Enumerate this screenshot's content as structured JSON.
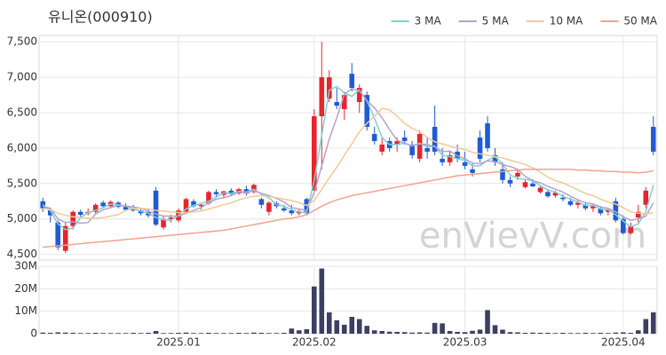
{
  "chart_data": {
    "type": "candlestick",
    "title": "유니온(000910)",
    "watermark": "enVievV.com",
    "categories": [
      null,
      null,
      null,
      null,
      null,
      null,
      null,
      null,
      null,
      null,
      null,
      null,
      null,
      null,
      null,
      null,
      null,
      null,
      "2025.01",
      null,
      null,
      null,
      null,
      null,
      null,
      null,
      null,
      null,
      null,
      null,
      null,
      null,
      null,
      null,
      null,
      null,
      "2025.02",
      null,
      null,
      null,
      null,
      null,
      null,
      null,
      null,
      null,
      null,
      null,
      null,
      null,
      null,
      null,
      null,
      null,
      null,
      null,
      "2025.03",
      null,
      null,
      null,
      null,
      null,
      null,
      null,
      null,
      null,
      null,
      null,
      null,
      null,
      null,
      null,
      null,
      null,
      null,
      null,
      null,
      "2025.04",
      null,
      null,
      null,
      null
    ],
    "open": [
      5250,
      5120,
      4950,
      4550,
      4900,
      5100,
      5080,
      5100,
      5230,
      5180,
      5230,
      5170,
      5150,
      5120,
      5100,
      5400,
      4880,
      5000,
      4980,
      5100,
      5250,
      5180,
      5220,
      5380,
      5340,
      5400,
      5360,
      5420,
      5380,
      5280,
      5100,
      5220,
      5150,
      5120,
      5080,
      5280,
      5400,
      6450,
      6700,
      6650,
      6550,
      7050,
      6650,
      6750,
      6200,
      5950,
      6100,
      6050,
      6150,
      6050,
      5850,
      6000,
      6300,
      5850,
      5800,
      5950,
      5800,
      5700,
      6150,
      6350,
      5900,
      5700,
      5550,
      5600,
      5450,
      5500,
      5380,
      5380,
      5330,
      5300,
      5250,
      5200,
      5200,
      5150,
      5150,
      5100,
      5250,
      5000,
      4800,
      5020,
      5200,
      6300
    ],
    "high": [
      5300,
      5150,
      4980,
      4950,
      5120,
      5130,
      5150,
      5220,
      5260,
      5260,
      5250,
      5220,
      5200,
      5160,
      5150,
      5450,
      5050,
      5060,
      5150,
      5300,
      5280,
      5220,
      5400,
      5420,
      5400,
      5430,
      5440,
      5470,
      5500,
      5300,
      5250,
      5250,
      5200,
      5200,
      5140,
      5300,
      6550,
      7500,
      7100,
      6850,
      6800,
      7200,
      6900,
      6800,
      6300,
      6150,
      6150,
      6150,
      6250,
      6100,
      6250,
      6150,
      6600,
      6000,
      5950,
      6050,
      5950,
      5780,
      6250,
      6450,
      6000,
      5800,
      5600,
      5700,
      5550,
      5560,
      5460,
      5420,
      5400,
      5350,
      5300,
      5280,
      5230,
      5200,
      5180,
      5150,
      5300,
      5050,
      4950,
      5200,
      5450,
      6450
    ],
    "low": [
      5100,
      4950,
      4560,
      4520,
      4850,
      5020,
      5050,
      5080,
      5150,
      5150,
      5150,
      5120,
      5100,
      5050,
      5020,
      4900,
      4850,
      4950,
      4950,
      5080,
      5160,
      5130,
      5200,
      5300,
      5300,
      5330,
      5340,
      5330,
      5360,
      5150,
      5050,
      5150,
      5100,
      5050,
      5050,
      5050,
      5400,
      5700,
      6650,
      6550,
      6400,
      6800,
      6500,
      6250,
      6050,
      5900,
      5950,
      5950,
      6050,
      5850,
      5800,
      5850,
      5900,
      5750,
      5750,
      5800,
      5700,
      5600,
      5800,
      5950,
      5750,
      5500,
      5450,
      5550,
      5430,
      5450,
      5360,
      5300,
      5300,
      5250,
      5180,
      5150,
      5120,
      5100,
      5050,
      5050,
      4950,
      4780,
      4780,
      4950,
      5150,
      5900
    ],
    "close": [
      5150,
      5050,
      4600,
      4900,
      5100,
      5060,
      5100,
      5200,
      5180,
      5240,
      5170,
      5130,
      5120,
      5080,
      5050,
      4920,
      5000,
      5020,
      5120,
      5280,
      5180,
      5200,
      5380,
      5350,
      5390,
      5350,
      5420,
      5360,
      5480,
      5200,
      5230,
      5180,
      5120,
      5080,
      5100,
      5080,
      6450,
      7000,
      7000,
      6600,
      6750,
      6850,
      6850,
      6300,
      6100,
      6050,
      6000,
      6100,
      6100,
      5900,
      6200,
      5950,
      5950,
      5800,
      5900,
      5850,
      5750,
      5650,
      5850,
      6000,
      5800,
      5550,
      5500,
      5650,
      5520,
      5460,
      5440,
      5320,
      5370,
      5280,
      5200,
      5230,
      5150,
      5180,
      5080,
      5130,
      4980,
      4800,
      4900,
      5100,
      5400,
      5950
    ],
    "up_color": "#e8242c",
    "down_color": "#1f5bd6",
    "ylim": [
      4420,
      7590
    ],
    "yticks": [
      {
        "value": 4500,
        "label": "4,500"
      },
      {
        "value": 5000,
        "label": "5,000"
      },
      {
        "value": 5500,
        "label": "5,500"
      },
      {
        "value": 6000,
        "label": "6,000"
      },
      {
        "value": 6500,
        "label": "6,500"
      },
      {
        "value": 7000,
        "label": "7,000"
      },
      {
        "value": 7500,
        "label": "7,500"
      }
    ],
    "grid": true,
    "legend": "top-right",
    "series": [
      {
        "name": "3 MA",
        "color": "#7fd0d4",
        "values": [
          5200,
          5120,
          4930,
          4850,
          4870,
          5020,
          5090,
          5120,
          5160,
          5210,
          5200,
          5180,
          5140,
          5110,
          5080,
          5020,
          4990,
          4980,
          5050,
          5140,
          5190,
          5220,
          5250,
          5310,
          5370,
          5360,
          5390,
          5380,
          5420,
          5350,
          5300,
          5200,
          5180,
          5130,
          5100,
          5090,
          5540,
          6180,
          6820,
          6870,
          6780,
          6730,
          6820,
          6670,
          6420,
          6150,
          6050,
          6050,
          6070,
          6030,
          6070,
          6020,
          6030,
          5900,
          5880,
          5850,
          5830,
          5750,
          5750,
          5830,
          5880,
          5780,
          5620,
          5570,
          5560,
          5540,
          5470,
          5410,
          5380,
          5320,
          5280,
          5240,
          5190,
          5190,
          5140,
          5130,
          5060,
          4970,
          4890,
          4930,
          5100,
          5480
        ]
      },
      {
        "name": "5 MA",
        "color": "#b4a3c9",
        "values": [
          5180,
          5150,
          5000,
          4950,
          4960,
          4940,
          4950,
          5070,
          5130,
          5160,
          5190,
          5180,
          5170,
          5150,
          5110,
          5070,
          5040,
          5040,
          5040,
          5080,
          5120,
          5160,
          5230,
          5280,
          5300,
          5330,
          5380,
          5370,
          5400,
          5360,
          5330,
          5290,
          5240,
          5160,
          5140,
          5120,
          5370,
          5750,
          6130,
          6430,
          6760,
          6840,
          6810,
          6670,
          6570,
          6430,
          6260,
          6110,
          6070,
          6030,
          6060,
          6050,
          6020,
          5950,
          5960,
          5890,
          5850,
          5790,
          5780,
          5820,
          5810,
          5770,
          5740,
          5700,
          5600,
          5540,
          5510,
          5460,
          5420,
          5380,
          5320,
          5270,
          5230,
          5210,
          5170,
          5150,
          5100,
          5030,
          4980,
          5000,
          5040,
          5230
        ]
      },
      {
        "name": "10 MA",
        "color": "#f1c996",
        "values": [
          5150,
          5130,
          5080,
          5050,
          5030,
          5020,
          5010,
          5010,
          5020,
          5040,
          5060,
          5120,
          5150,
          5150,
          5140,
          5120,
          5110,
          5100,
          5090,
          5090,
          5100,
          5110,
          5140,
          5170,
          5200,
          5230,
          5270,
          5300,
          5320,
          5330,
          5320,
          5300,
          5280,
          5260,
          5230,
          5190,
          5260,
          5420,
          5580,
          5730,
          5900,
          6060,
          6230,
          6350,
          6450,
          6560,
          6540,
          6450,
          6350,
          6280,
          6230,
          6150,
          6090,
          6060,
          6030,
          6000,
          5980,
          5940,
          5920,
          5900,
          5880,
          5860,
          5830,
          5800,
          5770,
          5720,
          5660,
          5590,
          5540,
          5510,
          5460,
          5410,
          5360,
          5330,
          5280,
          5240,
          5210,
          5160,
          5100,
          5080,
          5070,
          5090
        ]
      },
      {
        "name": "50 MA",
        "color": "#f2a28c",
        "values": [
          4600,
          4610,
          4620,
          4630,
          4640,
          4650,
          4660,
          4670,
          4680,
          4690,
          4700,
          4710,
          4720,
          4730,
          4740,
          4750,
          4760,
          4770,
          4780,
          4790,
          4800,
          4810,
          4820,
          4830,
          4840,
          4860,
          4880,
          4900,
          4920,
          4940,
          4960,
          4980,
          5000,
          5010,
          5030,
          5060,
          5120,
          5180,
          5230,
          5270,
          5300,
          5330,
          5350,
          5370,
          5390,
          5410,
          5430,
          5450,
          5470,
          5490,
          5510,
          5530,
          5550,
          5570,
          5590,
          5610,
          5620,
          5630,
          5640,
          5650,
          5660,
          5670,
          5680,
          5690,
          5700,
          5700,
          5700,
          5700,
          5700,
          5700,
          5700,
          5690,
          5690,
          5680,
          5680,
          5670,
          5670,
          5660,
          5660,
          5650,
          5660,
          5680
        ]
      }
    ],
    "volume": {
      "color": "#3d3f62",
      "ylim": [
        0,
        30000000
      ],
      "yticks": [
        0,
        {
          "value": 10000000,
          "label": "10M"
        },
        {
          "value": 20000000,
          "label": "20M"
        },
        {
          "value": 30000000,
          "label": "30M"
        }
      ],
      "values": [
        500000,
        400000,
        600000,
        500000,
        400000,
        300000,
        300000,
        400000,
        300000,
        300000,
        300000,
        300000,
        400000,
        300000,
        400000,
        1200000,
        300000,
        300000,
        400000,
        500000,
        300000,
        300000,
        400000,
        300000,
        300000,
        300000,
        400000,
        300000,
        500000,
        400000,
        300000,
        300000,
        400000,
        2300000,
        1500000,
        2000000,
        21000000,
        29000000,
        9500000,
        6000000,
        4000000,
        7500000,
        6500000,
        3500000,
        1500000,
        1200000,
        900000,
        800000,
        700000,
        500000,
        600000,
        500000,
        4800000,
        4600000,
        1200000,
        800000,
        700000,
        1300000,
        1800000,
        10500000,
        3800000,
        1800000,
        700000,
        600000,
        400000,
        500000,
        400000,
        400000,
        300000,
        400000,
        300000,
        300000,
        400000,
        300000,
        400000,
        300000,
        500000,
        600000,
        400000,
        1500000,
        6500000,
        9500000
      ]
    }
  }
}
